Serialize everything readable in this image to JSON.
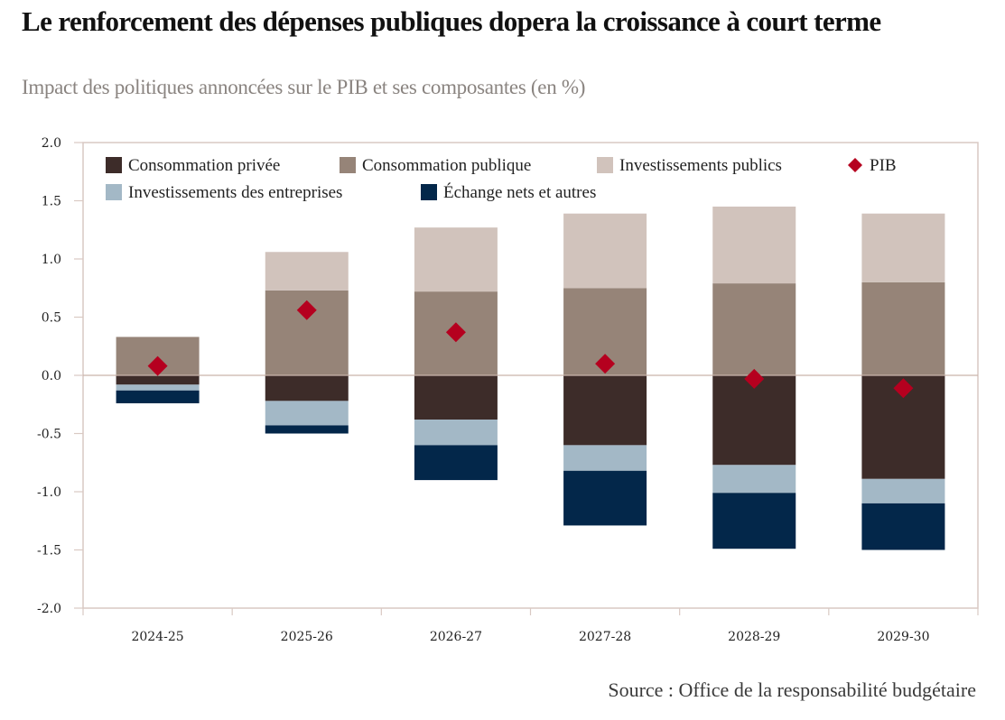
{
  "header": {
    "title": "Le renforcement des dépenses publiques dopera la croissance à court terme",
    "subtitle": "Impact des politiques annoncées sur le PIB et ses composantes (en %)"
  },
  "footer": {
    "source": "Source : Office de la responsabilité budgétaire"
  },
  "colors": {
    "consommation_privee": "#3d2c29",
    "consommation_publique": "#968478",
    "investissements_publics": "#d1c3bc",
    "investissements_entreprises": "#a3b8c6",
    "echange_nets": "#03274a",
    "pib": "#b5001f",
    "frame": "#d9c9c3"
  },
  "chart_data": {
    "type": "bar",
    "stacked": true,
    "title": "Le renforcement des dépenses publiques dopera la croissance à court terme",
    "subtitle": "Impact des politiques annoncées sur le PIB et ses composantes (en %)",
    "xlabel": "",
    "ylabel": "",
    "categories": [
      "2024-25",
      "2025-26",
      "2026-27",
      "2027-28",
      "2028-29",
      "2029-30"
    ],
    "ylim": [
      -2.0,
      2.0
    ],
    "yticks": [
      "2.0",
      "1.5",
      "1.0",
      "0.5",
      "0.0",
      "-0.5",
      "-1.0",
      "-1.5",
      "-2.0"
    ],
    "ytick_values": [
      2.0,
      1.5,
      1.0,
      0.5,
      0.0,
      -0.5,
      -1.0,
      -1.5,
      -2.0
    ],
    "grid": false,
    "legend_position": "top-left inside",
    "series": [
      {
        "name": "Consommation privée",
        "key": "consommation_privee",
        "kind": "bar",
        "values": [
          -0.08,
          -0.22,
          -0.38,
          -0.6,
          -0.77,
          -0.89
        ]
      },
      {
        "name": "Consommation publique",
        "key": "consommation_publique",
        "kind": "bar",
        "values": [
          0.33,
          0.73,
          0.72,
          0.75,
          0.79,
          0.8
        ]
      },
      {
        "name": "Investissements publics",
        "key": "investissements_publics",
        "kind": "bar",
        "values": [
          0.0,
          0.33,
          0.55,
          0.64,
          0.66,
          0.59
        ]
      },
      {
        "name": "Investissements des entreprises",
        "key": "investissements_entreprises",
        "kind": "bar",
        "values": [
          -0.05,
          -0.21,
          -0.22,
          -0.22,
          -0.24,
          -0.21
        ]
      },
      {
        "name": "Échange nets et autres",
        "key": "echange_nets",
        "kind": "bar",
        "values": [
          -0.11,
          -0.07,
          -0.3,
          -0.47,
          -0.48,
          -0.4
        ]
      },
      {
        "name": "PIB",
        "key": "pib",
        "kind": "marker",
        "values": [
          0.08,
          0.56,
          0.37,
          0.1,
          -0.03,
          -0.11
        ]
      }
    ],
    "legend": [
      {
        "label": "Consommation privée",
        "key": "consommation_privee",
        "shape": "square"
      },
      {
        "label": "Consommation publique",
        "key": "consommation_publique",
        "shape": "square"
      },
      {
        "label": "Investissements publics",
        "key": "investissements_publics",
        "shape": "square"
      },
      {
        "label": "PIB",
        "key": "pib",
        "shape": "diamond"
      },
      {
        "label": "Investissements des entreprises",
        "key": "investissements_entreprises",
        "shape": "square"
      },
      {
        "label": "Échange nets et autres",
        "key": "echange_nets",
        "shape": "square"
      }
    ]
  }
}
